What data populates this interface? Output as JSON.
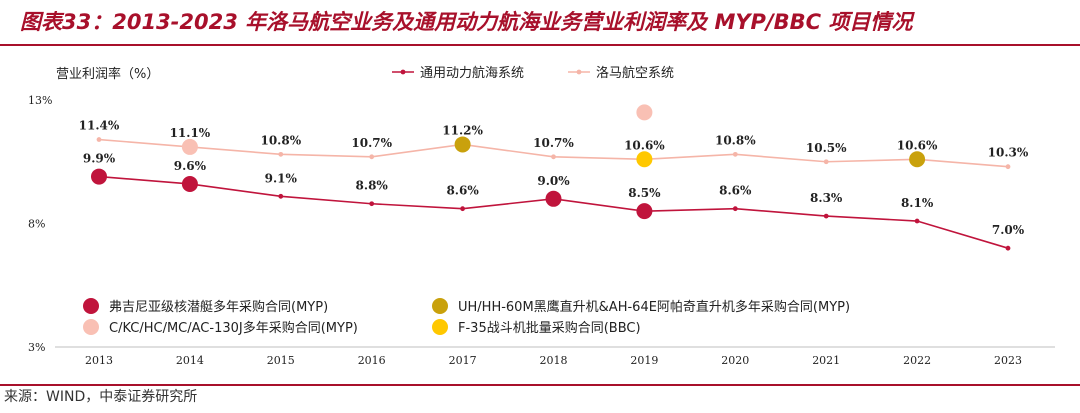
{
  "figure": {
    "title": "图表33：2013-2023 年洛马航空业务及通用动力航海业务营业利润率及 MYP/BBC 项目情况",
    "source": "来源：WIND，中泰证券研究所"
  },
  "colors": {
    "title": "#a8102b",
    "gd_line": "#c0143c",
    "lm_line": "#f5b5a8",
    "virginia_myp": "#c0143c",
    "c130_myp": "#f9c0b4",
    "apache_myp": "#c9a10c",
    "f35_bbc": "#ffc800"
  },
  "chart_data": {
    "type": "line",
    "ylabel": "营业利润率（%）",
    "yticks": [
      "13%",
      "8%",
      "3%"
    ],
    "ylim": [
      3,
      13
    ],
    "x": [
      "2013",
      "2014",
      "2015",
      "2016",
      "2017",
      "2018",
      "2019",
      "2020",
      "2021",
      "2022",
      "2023"
    ],
    "series": [
      {
        "name": "通用动力航海系统",
        "color": "#c0143c",
        "values": [
          9.9,
          9.6,
          9.1,
          8.8,
          8.6,
          9.0,
          8.5,
          8.6,
          8.3,
          8.1,
          7.0
        ],
        "labels": [
          "9.9%",
          "9.6%",
          "9.1%",
          "8.8%",
          "8.6%",
          "9.0%",
          "8.5%",
          "8.6%",
          "8.3%",
          "8.1%",
          "7.0%"
        ]
      },
      {
        "name": "洛马航空系统",
        "color": "#f5b5a8",
        "values": [
          11.4,
          11.1,
          10.8,
          10.7,
          11.2,
          10.7,
          10.6,
          10.8,
          10.5,
          10.6,
          10.3
        ],
        "labels": [
          "11.4%",
          "11.1%",
          "10.8%",
          "10.7%",
          "11.2%",
          "10.7%",
          "10.6%",
          "10.8%",
          "10.5%",
          "10.6%",
          "10.3%"
        ]
      }
    ],
    "markers": [
      {
        "label": "弗吉尼亚级核潜艇多年采购合同(MYP)",
        "color": "#c0143c",
        "points": [
          [
            "2013",
            9.9
          ],
          [
            "2014",
            9.6
          ],
          [
            "2018",
            9.0
          ],
          [
            "2019",
            8.5
          ]
        ]
      },
      {
        "label": "C/KC/HC/MC/AC-130J多年采购合同(MYP)",
        "color": "#f9c0b4",
        "points": [
          [
            "2014",
            11.1
          ],
          [
            "2019",
            12.5
          ]
        ]
      },
      {
        "label": "UH/HH-60M黑鹰直升机&AH-64E阿帕奇直升机多年采购合同(MYP)",
        "color": "#c9a10c",
        "points": [
          [
            "2017",
            11.2
          ],
          [
            "2022",
            10.6
          ]
        ]
      },
      {
        "label": "F-35战斗机批量采购合同(BBC)",
        "color": "#ffc800",
        "points": [
          [
            "2019",
            10.6
          ]
        ]
      }
    ]
  }
}
